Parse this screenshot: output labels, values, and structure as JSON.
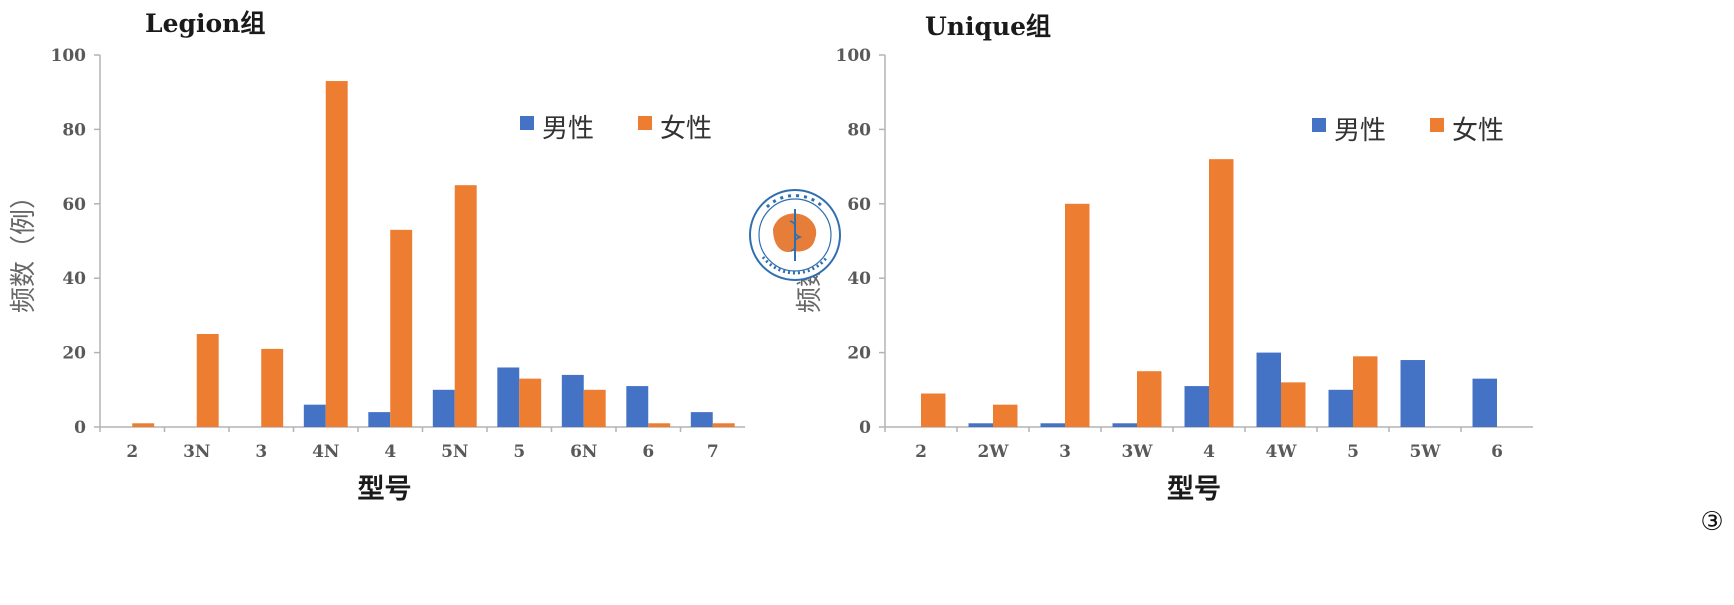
{
  "chart_data": [
    {
      "type": "bar",
      "title": "Legion组",
      "xlabel": "型号",
      "ylabel": "频数（例）",
      "ylim": [
        0,
        100
      ],
      "yticks": [
        0,
        20,
        40,
        60,
        80,
        100
      ],
      "grid": false,
      "legend_position": "top-right",
      "categories": [
        "2",
        "3N",
        "3",
        "4N",
        "4",
        "5N",
        "5",
        "6N",
        "6",
        "7"
      ],
      "series": [
        {
          "name": "男性",
          "color": "#4472C4",
          "values": [
            0,
            0,
            0,
            6,
            4,
            10,
            16,
            14,
            11,
            4
          ]
        },
        {
          "name": "女性",
          "color": "#ED7D31",
          "values": [
            1,
            25,
            21,
            93,
            53,
            65,
            13,
            10,
            1,
            1
          ]
        }
      ]
    },
    {
      "type": "bar",
      "title": "Unique组",
      "xlabel": "型号",
      "ylabel": "频数（例）",
      "ylim": [
        0,
        100
      ],
      "yticks": [
        0,
        20,
        40,
        60,
        80,
        100
      ],
      "grid": false,
      "legend_position": "top-right",
      "categories": [
        "2",
        "2W",
        "3",
        "3W",
        "4",
        "4W",
        "5",
        "5W",
        "6"
      ],
      "series": [
        {
          "name": "男性",
          "color": "#4472C4",
          "values": [
            0,
            1,
            1,
            1,
            11,
            20,
            10,
            18,
            13
          ]
        },
        {
          "name": "女性",
          "color": "#ED7D31",
          "values": [
            9,
            6,
            60,
            15,
            72,
            12,
            19,
            0,
            0
          ]
        }
      ]
    }
  ],
  "figure_label": "③",
  "logo": {
    "icon": "medical-association-seal-icon",
    "color": "#2f6fb0",
    "text": "中华医学会 CHINESE MEDICAL ASSOCIATION 1915"
  }
}
